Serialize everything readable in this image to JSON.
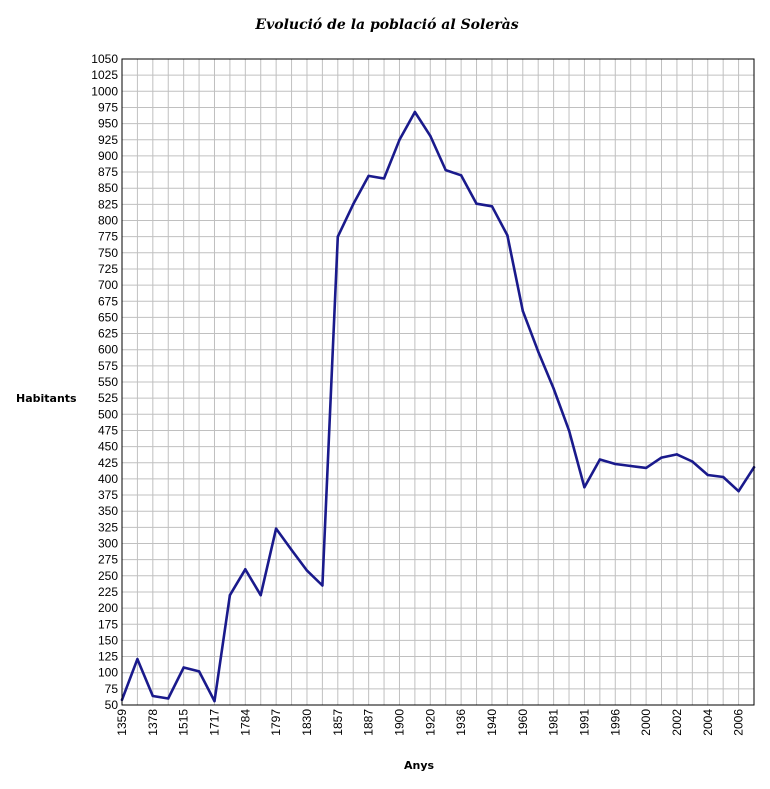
{
  "chart_data": {
    "type": "line",
    "title": "Evolució de la població al Soleràs",
    "xlabel": "Anys",
    "ylabel": "Habitants",
    "ylim": [
      50,
      1050
    ],
    "ystep": 25,
    "grid": true,
    "line_color": "#1a1a8c",
    "x_tick_labels": [
      "1359",
      "1378",
      "1515",
      "1717",
      "1784",
      "1797",
      "1830",
      "1857",
      "1887",
      "1900",
      "1920",
      "1936",
      "1940",
      "1960",
      "1981",
      "1991",
      "1996",
      "2000",
      "2002",
      "2004",
      "2006"
    ],
    "values": [
      58,
      121,
      64,
      60,
      108,
      102,
      56,
      220,
      260,
      220,
      323,
      290,
      258,
      235,
      775,
      825,
      869,
      865,
      925,
      968,
      931,
      878,
      870,
      826,
      822,
      777,
      660,
      597,
      540,
      475,
      387,
      430,
      423,
      420,
      417,
      433,
      438,
      427,
      406,
      403,
      381,
      418
    ]
  }
}
